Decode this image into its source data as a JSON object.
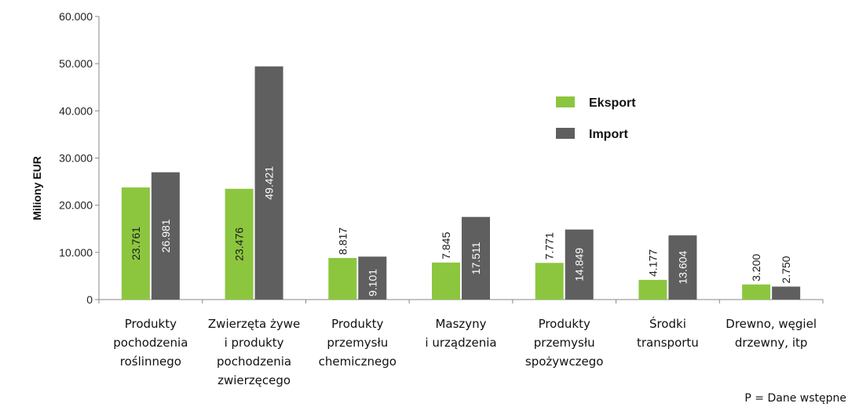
{
  "chart_data": {
    "type": "bar",
    "ylabel": "Miliony EUR",
    "ylim": [
      0,
      60000
    ],
    "yticks": [
      "0",
      "10.000",
      "20.000",
      "30.000",
      "40.000",
      "50.000",
      "60.000"
    ],
    "categories": [
      [
        "Produkty",
        "pochodzenia",
        "roślinnego"
      ],
      [
        "Zwierzęta żywe",
        "i produkty",
        "pochodzenia",
        "zwierzęcego"
      ],
      [
        "Produkty",
        "przemysłu",
        "chemicznego"
      ],
      [
        "Maszyny",
        "i urządzenia"
      ],
      [
        "Produkty",
        "przemysłu",
        "spożywczego"
      ],
      [
        "Środki",
        "transportu"
      ],
      [
        "Drewno, węgiel",
        "drzewny, itp"
      ]
    ],
    "series": [
      {
        "name": "Eksport",
        "color": "#8cc63f",
        "values": [
          23761,
          23476,
          8817,
          7845,
          7771,
          4177,
          3200
        ],
        "labels": [
          "23.761",
          "23.476",
          "8.817",
          "7.845",
          "7.771",
          "4.177",
          "3.200"
        ]
      },
      {
        "name": "Import",
        "color": "#5f5f5f",
        "values": [
          26981,
          49421,
          9101,
          17511,
          14849,
          13604,
          2750
        ],
        "labels": [
          "26.981",
          "49.421",
          "9.101",
          "17.511",
          "14.849",
          "13.604",
          "2.750"
        ]
      }
    ],
    "legend_position": "top-right",
    "grid": false
  },
  "footnote": "P = Dane wstępne"
}
